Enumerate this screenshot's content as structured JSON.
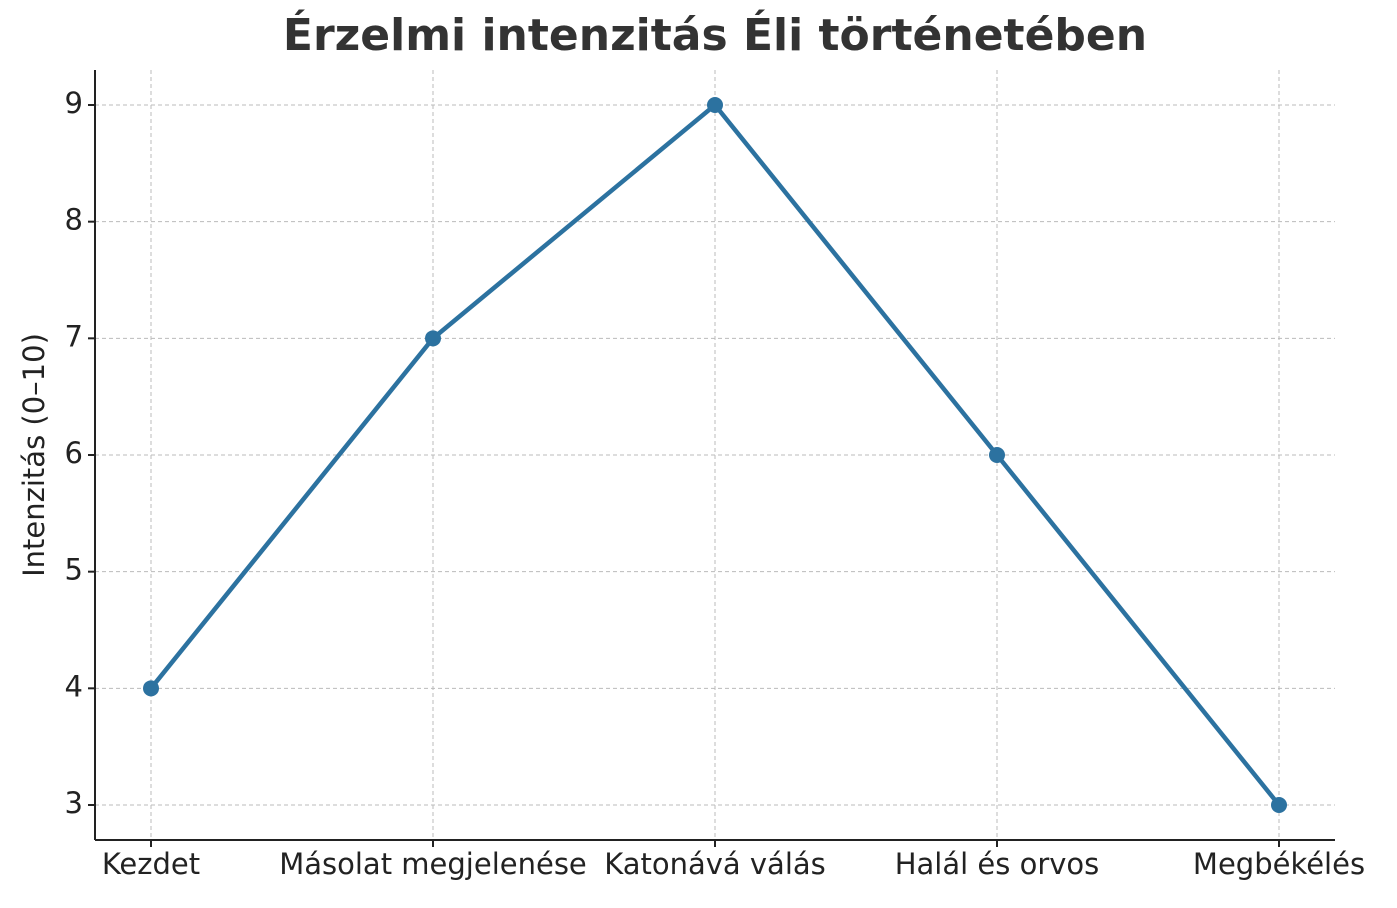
{
  "chart_data": {
    "type": "line",
    "title": "Érzelmi intenzitás Éli történetében",
    "y_label": "Intenzitás (0–10)",
    "categories": [
      "Kezdet",
      "Másolat megjelenése",
      "Katonává válás",
      "Halál és orvos",
      "Megbékélés"
    ],
    "series": [
      {
        "name": "Intenzitás",
        "color": "#2c72a0",
        "values": [
          4,
          7,
          9,
          6,
          3
        ]
      }
    ],
    "ylim": [
      2.7,
      9.3
    ],
    "yticks": [
      3,
      4,
      5,
      6,
      7,
      8,
      9
    ],
    "grid": true
  }
}
